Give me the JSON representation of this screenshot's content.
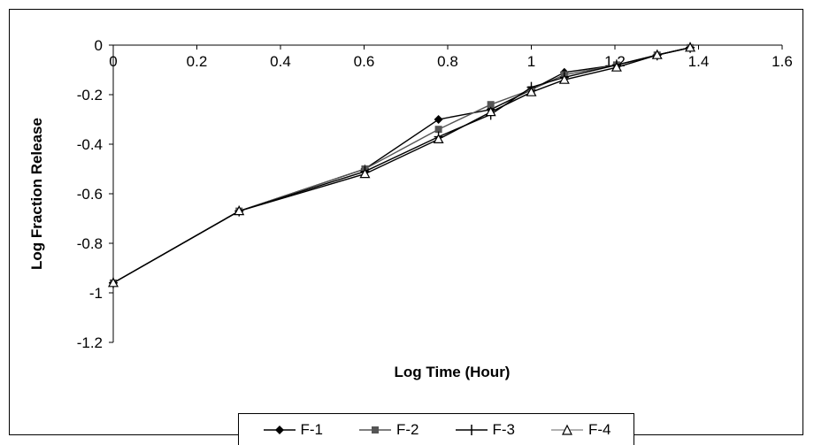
{
  "chart_data": {
    "type": "line",
    "title": "",
    "xlabel": "Log Time (Hour)",
    "ylabel": "Log Fraction Release",
    "xlim": [
      0,
      1.6
    ],
    "ylim": [
      -1.2,
      0
    ],
    "x_ticks": [
      "0",
      "0.2",
      "0.4",
      "0.6",
      "0.8",
      "1",
      "1.2",
      "1.4",
      "1.6"
    ],
    "y_ticks": [
      "0",
      "-0.2",
      "-0.4",
      "-0.6",
      "-0.8",
      "-1",
      "-1.2"
    ],
    "x_tick_values": [
      0,
      0.2,
      0.4,
      0.6,
      0.8,
      1.0,
      1.2,
      1.4,
      1.6
    ],
    "y_tick_values": [
      0,
      -0.2,
      -0.4,
      -0.6,
      -0.8,
      -1.0,
      -1.2
    ],
    "grid": false,
    "legend_position": "bottom",
    "x": [
      0,
      0.301,
      0.602,
      0.778,
      0.903,
      1.0,
      1.079,
      1.204,
      1.301,
      1.38
    ],
    "series": [
      {
        "name": "F-1",
        "marker": "diamond",
        "color": "#000000",
        "values": [
          -0.96,
          -0.67,
          -0.5,
          -0.3,
          -0.26,
          -0.18,
          -0.11,
          -0.08,
          -0.04,
          -0.01
        ]
      },
      {
        "name": "F-2",
        "marker": "square",
        "color": "#555555",
        "values": [
          -0.96,
          -0.67,
          -0.5,
          -0.34,
          -0.24,
          -0.18,
          -0.12,
          -0.08,
          -0.04,
          -0.01
        ]
      },
      {
        "name": "F-3",
        "marker": "plus",
        "color": "#000000",
        "values": [
          -0.96,
          -0.67,
          -0.51,
          -0.37,
          -0.28,
          -0.17,
          -0.13,
          -0.08,
          -0.04,
          -0.01
        ]
      },
      {
        "name": "F-4",
        "marker": "triangle",
        "color": "#000000",
        "values": [
          -0.96,
          -0.67,
          -0.52,
          -0.38,
          -0.27,
          -0.19,
          -0.14,
          -0.09,
          -0.04,
          -0.01
        ]
      }
    ]
  }
}
